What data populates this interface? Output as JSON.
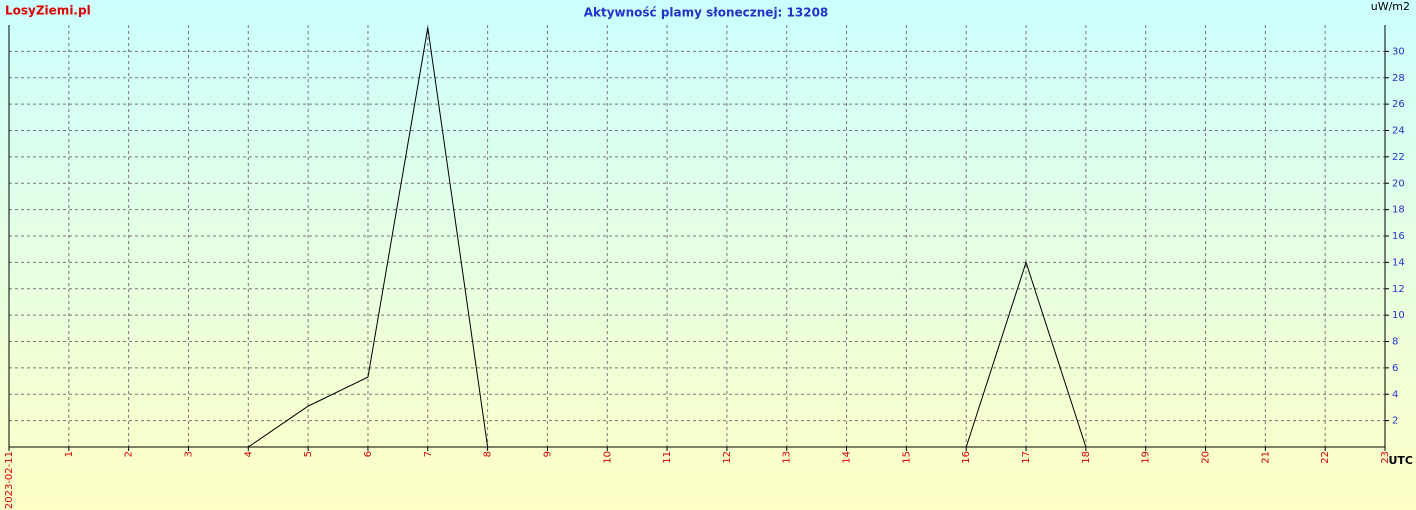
{
  "chart_data": {
    "type": "line",
    "title": "Aktywność plamy słonecznej: 13208",
    "brand": "LosyZiemi.pl",
    "y_label": "uW/m2",
    "x_label": "UTC",
    "x": [
      0,
      1,
      2,
      3,
      4,
      5,
      6,
      7,
      8,
      9,
      10,
      11,
      12,
      13,
      14,
      15,
      16,
      17,
      18,
      19,
      20,
      21,
      22,
      23
    ],
    "series": [
      {
        "color": "#000000",
        "values": [
          null,
          null,
          null,
          null,
          0,
          3.1,
          5.3,
          31.8,
          0,
          0,
          0,
          0,
          0,
          0,
          0,
          0,
          0,
          14,
          0,
          null,
          null,
          null,
          null,
          null
        ]
      }
    ],
    "xlim": [
      0,
      23
    ],
    "xticks": [
      {
        "value": 0,
        "label": "2023-02-11"
      },
      1,
      2,
      3,
      4,
      5,
      6,
      7,
      8,
      9,
      10,
      11,
      12,
      13,
      14,
      15,
      16,
      17,
      18,
      19,
      20,
      21,
      22,
      23
    ],
    "ylim": [
      0,
      32
    ],
    "yticks": [
      2,
      4,
      6,
      8,
      10,
      12,
      14,
      16,
      18,
      20,
      22,
      24,
      26,
      28,
      30
    ],
    "grid": true
  }
}
